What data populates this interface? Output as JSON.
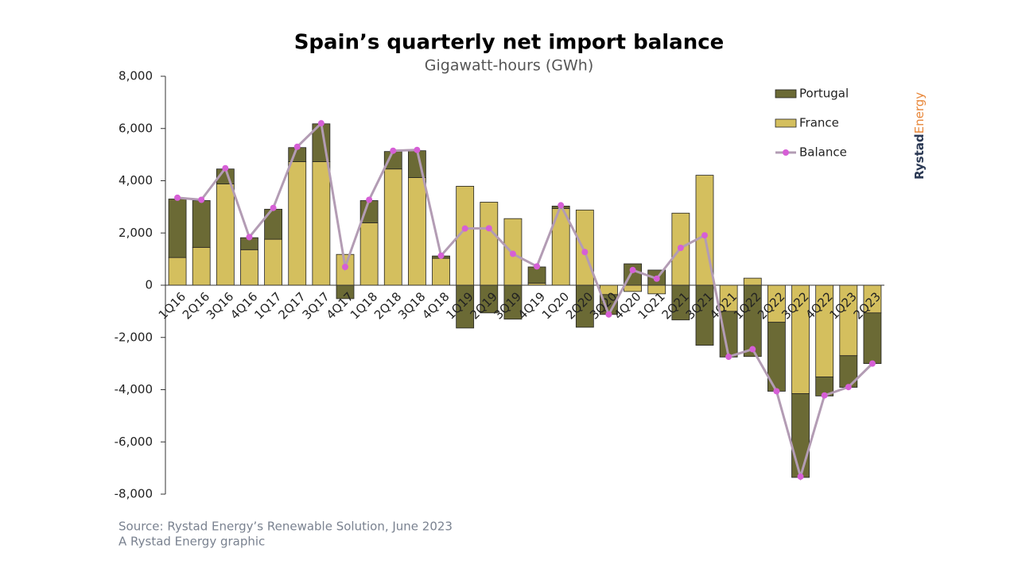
{
  "chart_data": {
    "type": "bar",
    "title": "Spain’s quarterly net import balance",
    "subtitle": "Gigawatt-hours (GWh)",
    "stacked": true,
    "categories": [
      "1Q16",
      "2Q16",
      "3Q16",
      "4Q16",
      "1Q17",
      "2Q17",
      "3Q17",
      "4Q17",
      "1Q18",
      "2Q18",
      "3Q18",
      "4Q18",
      "1Q19",
      "2Q19",
      "3Q19",
      "4Q19",
      "1Q20",
      "2Q20",
      "3Q20",
      "4Q20",
      "1Q21",
      "2Q21",
      "3Q21",
      "4Q21",
      "1Q22",
      "2Q22",
      "3Q22",
      "4Q22",
      "1Q23",
      "2Q23"
    ],
    "series": [
      {
        "name": "Portugal",
        "color": "#6b6a35",
        "values": [
          2240,
          1790,
          570,
          460,
          1150,
          540,
          1450,
          -515,
          850,
          670,
          1030,
          90,
          -1640,
          -1060,
          -1300,
          620,
          90,
          -1610,
          -760,
          820,
          580,
          -1330,
          -2300,
          -1750,
          -2730,
          -2640,
          -3210,
          -730,
          -1210,
          -1940
        ]
      },
      {
        "name": "France",
        "color": "#d4bf5e",
        "values": [
          1060,
          1450,
          3880,
          1360,
          1760,
          4730,
          4730,
          1180,
          2390,
          4450,
          4120,
          1030,
          3790,
          3180,
          2550,
          80,
          2940,
          2880,
          -360,
          -240,
          -330,
          2760,
          4210,
          -1000,
          270,
          -1420,
          -4150,
          -3510,
          -2700,
          -1060
        ]
      },
      {
        "name": "Balance",
        "type": "line",
        "color": "#b39cb4",
        "marker_color": "#d65fd6",
        "values": [
          3350,
          3270,
          4480,
          1840,
          2960,
          5300,
          6200,
          700,
          3270,
          5150,
          5180,
          1130,
          2170,
          2180,
          1200,
          720,
          3060,
          1270,
          -1120,
          580,
          250,
          1430,
          1910,
          -2740,
          -2450,
          -4060,
          -7330,
          -4220,
          -3900,
          -3000
        ]
      }
    ],
    "ylim": [
      -8000,
      8000
    ],
    "yticks": [
      {
        "value": -8000,
        "label": "-8,000"
      },
      {
        "value": -6000,
        "label": "-6,000"
      },
      {
        "value": -4000,
        "label": "-4,000"
      },
      {
        "value": -2000,
        "label": "-2,000"
      },
      0,
      {
        "value": 2000,
        "label": "2,000"
      },
      {
        "value": 4000,
        "label": "4,000"
      },
      {
        "value": 6000,
        "label": "6,000"
      },
      {
        "value": 8000,
        "label": "8,000"
      }
    ],
    "legend": "upper right",
    "source": "Source: Rystad Energy’s Renewable Solution, June 2023",
    "credit": "A Rystad Energy graphic",
    "logo": [
      "Rystad",
      "Energy"
    ]
  }
}
